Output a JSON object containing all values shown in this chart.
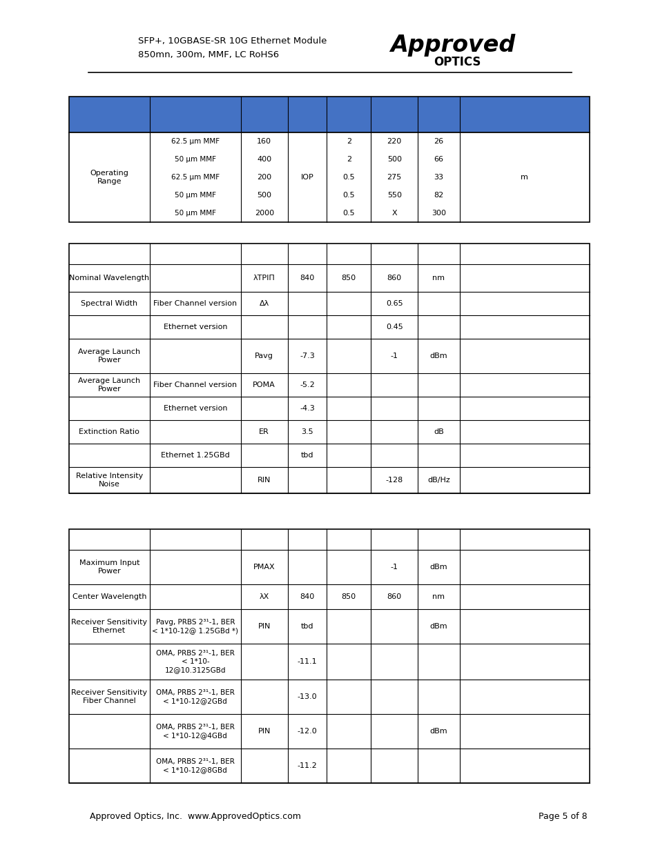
{
  "header_line1": "SFP+, 10GBASE-SR 10G Ethernet Module",
  "header_line2": "850mn, 300m, MMF, LC RoHS6",
  "footer_left": "Approved Optics, Inc.  www.ApprovedOptics.com",
  "footer_right": "Page 5 of 8",
  "blue_color": "#4472C4",
  "col_props": [
    0.155,
    0.175,
    0.09,
    0.075,
    0.085,
    0.09,
    0.08,
    0.065
  ],
  "table1_fiber_types": [
    "62.5 μm MMF",
    "50 μm MMF",
    "62.5 μm MMF",
    "50 μm MMF",
    "50 μm MMF"
  ],
  "table1_col2": [
    "160",
    "400",
    "200",
    "500",
    "2000"
  ],
  "table1_col3": "IOP",
  "table1_col4": [
    "2",
    "2",
    "0.5",
    "0.5",
    "0.5"
  ],
  "table1_col5": [
    "220",
    "500",
    "275",
    "550",
    "X"
  ],
  "table1_col6": [
    "26",
    "66",
    "33",
    "82",
    "300"
  ],
  "table1_col7": "m",
  "table2_rows": [
    [
      0,
      30,
      "",
      "",
      "",
      "",
      "",
      "",
      ""
    ],
    [
      30,
      40,
      "Nominal Wavelength",
      "",
      "λTPIΠ",
      "840",
      "850",
      "860",
      "nm"
    ],
    [
      70,
      34,
      "Spectral Width",
      "Fiber Channel version",
      "Δλ",
      "",
      "",
      "0.65",
      ""
    ],
    [
      104,
      34,
      "",
      "Ethernet version",
      "",
      "",
      "",
      "0.45",
      ""
    ],
    [
      138,
      50,
      "Average Launch\nPower",
      "",
      "Pavg",
      "-7.3",
      "",
      "-1",
      "dBm"
    ],
    [
      188,
      34,
      "Average Launch\nPower",
      "Fiber Channel version",
      "POMA",
      "-5.2",
      "",
      "",
      ""
    ],
    [
      222,
      34,
      "",
      "Ethernet version",
      "",
      "-4.3",
      "",
      "",
      ""
    ],
    [
      256,
      34,
      "Extinction Ratio",
      "",
      "ER",
      "3.5",
      "",
      "",
      "dB"
    ],
    [
      290,
      34,
      "",
      "Ethernet 1.25GBd",
      "",
      "tbd",
      "",
      "",
      ""
    ],
    [
      324,
      38,
      "Relative Intensity\nNoise",
      "",
      "RIN",
      "",
      "",
      "-128",
      "dB/Hz"
    ]
  ],
  "table3_rows": [
    [
      0,
      30,
      "",
      "",
      "",
      "",
      "",
      "",
      ""
    ],
    [
      30,
      50,
      "Maximum Input\nPower",
      "",
      "PMAX",
      "",
      "",
      "-1",
      "dBm"
    ],
    [
      80,
      36,
      "Center Wavelength",
      "",
      "λX",
      "840",
      "850",
      "860",
      "nm"
    ],
    [
      116,
      50,
      "Receiver Sensitivity\nEthernet",
      "Pavg, PRBS 2³¹-1, BER\n< 1*10-12@ 1.25GBd *)",
      "PIN",
      "tbd",
      "",
      "",
      "dBm"
    ],
    [
      166,
      52,
      "",
      "OMA, PRBS 2³¹-1, BER\n< 1*10-\n12@10.3125GBd",
      "",
      "-11.1",
      "",
      "",
      ""
    ],
    [
      218,
      50,
      "Receiver Sensitivity\nFiber Channel",
      "OMA, PRBS 2³¹-1, BER\n< 1*10-12@2GBd",
      "",
      "-13.0",
      "",
      "",
      ""
    ],
    [
      268,
      50,
      "",
      "OMA, PRBS 2³¹-1, BER\n< 1*10-12@4GBd",
      "PIN",
      "-12.0",
      "",
      "",
      "dBm"
    ],
    [
      318,
      50,
      "",
      "OMA, PRBS 2³¹-1, BER\n< 1*10-12@8GBd",
      "",
      "-11.2",
      "",
      "",
      ""
    ]
  ]
}
